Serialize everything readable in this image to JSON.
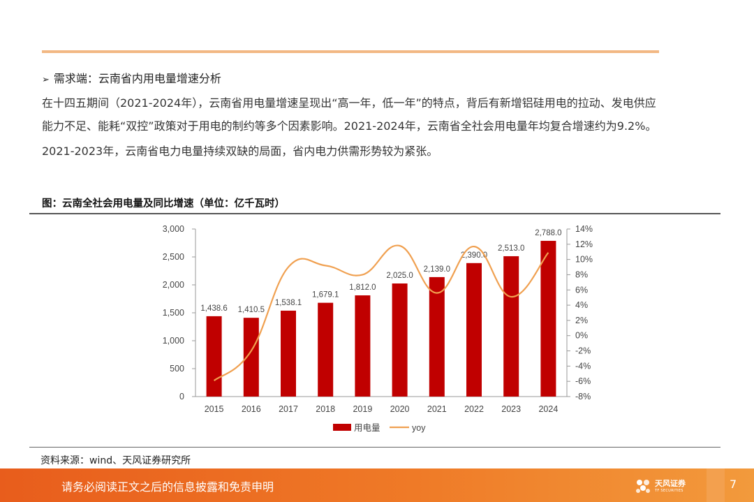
{
  "section": {
    "arrow": "➢",
    "heading": "需求端：云南省内用电量增速分析"
  },
  "paragraphs": [
    "在十四五期间（2021-2024年），云南省用电量增速呈现出“高一年，低一年”的特点，背后有新增铝硅用电的拉动、发电供应",
    "能力不足、能耗“双控”政策对于用电的制约等多个因素影响。2021-2024年，云南省全社会用电量年均复合增速约为9.2%。",
    "2021-2023年，云南省电力电量持续双缺的局面，省内电力供需形势较为紧张。"
  ],
  "figure_title": "图：云南全社会用电量及同比增速（单位：亿千瓦时）",
  "source": "资料来源：wind、天风证券研究所",
  "footer": {
    "disclaimer": "请务必阅读正文之后的信息披露和免责申明",
    "logo_name": "天风证券",
    "logo_sub": "TF SECURITIES",
    "page_number": "7"
  },
  "colors": {
    "bar": "#c00000",
    "line": "#f0a050",
    "accent_rule": "#f2b884",
    "footer": "#e85d1c"
  },
  "icons": [
    "arrow-bullet-icon",
    "tf-logo-icon"
  ],
  "chart_data": {
    "type": "bar",
    "categories": [
      "2015",
      "2016",
      "2017",
      "2018",
      "2019",
      "2020",
      "2021",
      "2022",
      "2023",
      "2024"
    ],
    "series": [
      {
        "name": "用电量",
        "type": "bar",
        "axis": "left",
        "values": [
          1438.6,
          1410.5,
          1538.1,
          1679.1,
          1812.0,
          2025.0,
          2139.0,
          2390.0,
          2513.0,
          2788.0
        ],
        "labels": [
          "1,438.6",
          "1,410.5",
          "1,538.1",
          "1,679.1",
          "1,812.0",
          "2,025.0",
          "2,139.0",
          "2,390.0",
          "2,513.0",
          "2,788.0"
        ]
      },
      {
        "name": "yoy",
        "type": "line",
        "axis": "right",
        "smooth": true,
        "values": [
          -5.9,
          -2.0,
          9.0,
          9.2,
          8.0,
          11.8,
          5.6,
          11.7,
          5.1,
          10.9
        ]
      }
    ],
    "y_left": {
      "min": 0,
      "max": 3000,
      "ticks": [
        "0",
        "500",
        "1,000",
        "1,500",
        "2,000",
        "2,500",
        "3,000"
      ]
    },
    "y_right": {
      "min": -8,
      "max": 14,
      "ticks": [
        "-8%",
        "-6%",
        "-4%",
        "-2%",
        "0%",
        "2%",
        "4%",
        "6%",
        "8%",
        "10%",
        "12%",
        "14%"
      ]
    },
    "legend": {
      "position": "bottom"
    },
    "grid": false
  }
}
